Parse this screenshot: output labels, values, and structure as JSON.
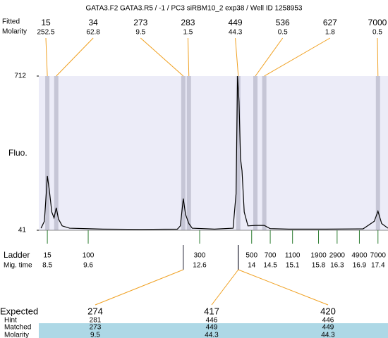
{
  "chart_data": {
    "type": "line",
    "title": "GATA3.F2  GATA3.R5 / -1 / PC3 siRBM10_2 exp38 / Well ID 1258953",
    "peak_size_label": "Fitted",
    "peak_molarity_label": "Molarity",
    "peaks": {
      "sizes": [
        15,
        34,
        273,
        283,
        449,
        536,
        627,
        7000
      ],
      "molarity": [
        252.5,
        62.8,
        9.5,
        1.5,
        44.3,
        0.5,
        1.8,
        0.5
      ],
      "mig_time": [
        8.5,
        8.74,
        12.16,
        12.31,
        13.64,
        14.1,
        14.34,
        17.4
      ]
    },
    "ylabel": "Fluo.",
    "ylim": [
      41,
      712
    ],
    "yticks": [
      41,
      712
    ],
    "xlim": [
      8.27,
      17.67
    ],
    "trace": {
      "x": [
        8.33,
        8.42,
        8.47,
        8.5,
        8.55,
        8.62,
        8.68,
        8.74,
        8.8,
        8.9,
        9.1,
        10,
        11,
        12,
        12.08,
        12.16,
        12.22,
        12.31,
        12.4,
        13,
        13.5,
        13.58,
        13.62,
        13.66,
        13.7,
        13.74,
        13.8,
        13.9,
        14.1,
        14.34,
        14.5,
        15,
        16,
        17,
        17.3,
        17.4,
        17.5,
        17.67
      ],
      "y": [
        50,
        80,
        200,
        277,
        220,
        120,
        95,
        139,
        90,
        60,
        50,
        46,
        45,
        46,
        60,
        179,
        110,
        70,
        50,
        46,
        50,
        200,
        712,
        600,
        353,
        300,
        120,
        60,
        62,
        62,
        48,
        46,
        46,
        47,
        80,
        124,
        70,
        50
      ],
      "color": "#000000"
    },
    "ladder_label": "Ladder",
    "mig_time_label": "Mig. time",
    "ladder": {
      "sizes": [
        15,
        100,
        300,
        500,
        700,
        1100,
        1900,
        2900,
        4900,
        7000
      ],
      "mig_time": [
        8.5,
        9.6,
        12.6,
        14,
        14.5,
        15.1,
        15.8,
        16.3,
        16.9,
        17.4
      ],
      "color": "#2e7d32"
    },
    "table": {
      "row_labels": [
        "Expected",
        "Hint",
        "Matched",
        "Molarity"
      ],
      "expected": [
        274,
        417,
        420
      ],
      "expected_colors": [
        "#e02020",
        "#e02020",
        "#000000"
      ],
      "hint": [
        281,
        446,
        446
      ],
      "matched": [
        273,
        449,
        449
      ],
      "molarity": [
        9.5,
        44.3,
        44.3
      ]
    }
  }
}
